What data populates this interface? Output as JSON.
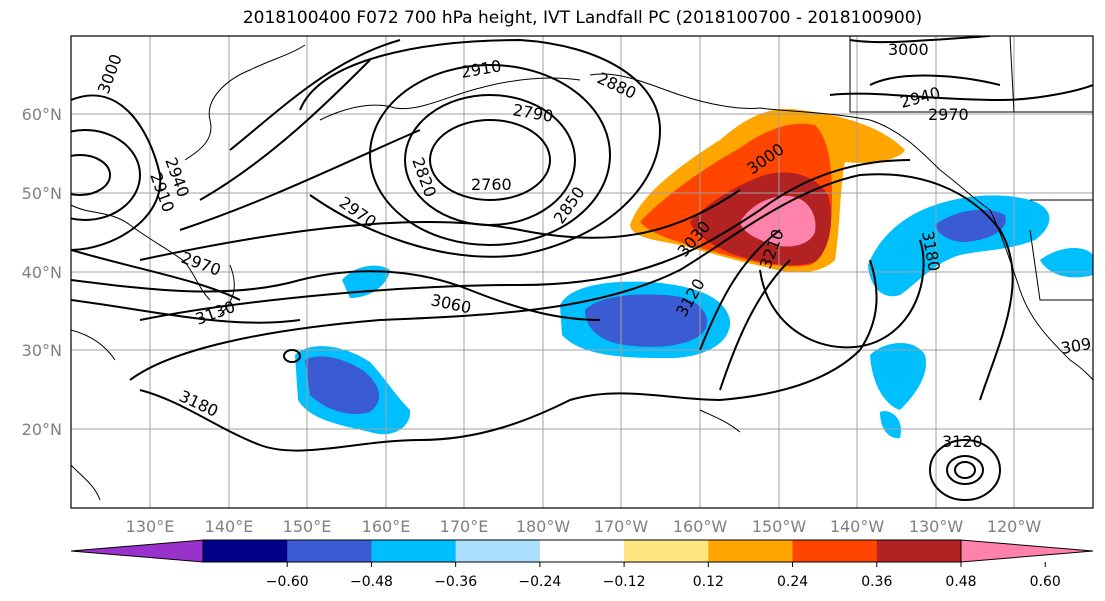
{
  "title": "2018100400 F072 700 hPa height, IVT Landfall PC (2018100700 - 2018100900)",
  "lat_labels": [
    "60°N",
    "50°N",
    "40°N",
    "30°N",
    "20°N"
  ],
  "lon_labels": [
    "130°E",
    "140°E",
    "150°E",
    "160°E",
    "170°E",
    "180°W",
    "170°W",
    "160°W",
    "150°W",
    "140°W",
    "130°W",
    "120°W"
  ],
  "contour_labels": [
    "3000",
    "2940",
    "2910",
    "2970",
    "3130",
    "3180",
    "2910",
    "2880",
    "2790",
    "2820",
    "2760",
    "2850",
    "2970",
    "3000",
    "3030",
    "3120",
    "3210",
    "3060",
    "3000",
    "2940",
    "2970",
    "3180",
    "3120",
    "309"
  ],
  "colorbar": {
    "colors": [
      "#9932CC",
      "#00008B",
      "#3A5BD2",
      "#00BFFF",
      "#ADDFFF",
      "#FFFFFF",
      "#FFE680",
      "#FFA500",
      "#FF4500",
      "#B22222",
      "#FF82AB"
    ],
    "tick_labels": [
      "−0.60",
      "−0.48",
      "−0.36",
      "−0.24",
      "−0.12",
      "0.12",
      "0.24",
      "0.36",
      "0.48",
      "0.60"
    ]
  },
  "colors": {
    "gridline": "#a0a0a0",
    "contour": "#000000",
    "axis_label": "#808080"
  }
}
